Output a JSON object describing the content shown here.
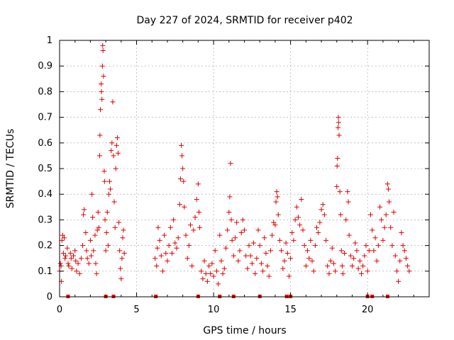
{
  "chart_data": {
    "type": "scatter",
    "title": "Day 227 of 2024, SRMTID for receiver p402",
    "xlabel": "GPS time / hours",
    "ylabel": "SRMTID / TECUs",
    "xlim": [
      0,
      24
    ],
    "ylim": [
      0,
      1
    ],
    "xticks": [
      0,
      5,
      10,
      15,
      20
    ],
    "yticks": [
      0,
      0.1,
      0.2,
      0.3,
      0.4,
      0.5,
      0.6,
      0.7,
      0.8,
      0.9,
      1
    ],
    "xtick_labels": [
      "0",
      "5",
      "10",
      "15",
      "20"
    ],
    "ytick_labels": [
      "0",
      "0.1",
      "0.2",
      "0.3",
      "0.4",
      "0.5",
      "0.6",
      "0.7",
      "0.8",
      "0.9",
      "1"
    ],
    "grid": true,
    "marker": "plus",
    "color": "#e00000",
    "series": [
      {
        "points": [
          [
            0.0,
            0.1
          ],
          [
            0.05,
            0.13
          ],
          [
            0.1,
            0.12
          ],
          [
            0.12,
            0.06
          ],
          [
            0.15,
            0.22
          ],
          [
            0.2,
            0.24
          ],
          [
            0.25,
            0.17
          ],
          [
            0.3,
            0.23
          ],
          [
            0.35,
            0.15
          ],
          [
            0.4,
            0.16
          ],
          [
            0.5,
            0.19
          ],
          [
            0.55,
            0.13
          ],
          [
            0.6,
            0.12
          ],
          [
            0.7,
            0.17
          ],
          [
            0.75,
            0.15
          ],
          [
            0.8,
            0.11
          ],
          [
            0.9,
            0.16
          ],
          [
            1.0,
            0.18
          ],
          [
            1.05,
            0.14
          ],
          [
            1.1,
            0.1
          ],
          [
            1.2,
            0.13
          ],
          [
            1.3,
            0.09
          ],
          [
            1.4,
            0.15
          ],
          [
            1.5,
            0.2
          ],
          [
            1.55,
            0.32
          ],
          [
            1.6,
            0.34
          ],
          [
            1.7,
            0.25
          ],
          [
            1.75,
            0.18
          ],
          [
            1.8,
            0.15
          ],
          [
            1.9,
            0.13
          ],
          [
            2.0,
            0.22
          ],
          [
            2.05,
            0.16
          ],
          [
            2.1,
            0.4
          ],
          [
            2.15,
            0.31
          ],
          [
            2.2,
            0.18
          ],
          [
            2.3,
            0.24
          ],
          [
            2.35,
            0.13
          ],
          [
            2.4,
            0.09
          ],
          [
            2.45,
            0.26
          ],
          [
            2.5,
            0.33
          ],
          [
            2.55,
            0.27
          ],
          [
            2.6,
            0.55
          ],
          [
            2.62,
            0.63
          ],
          [
            2.65,
            0.73
          ],
          [
            2.7,
            0.83
          ],
          [
            2.72,
            0.8
          ],
          [
            2.75,
            0.77
          ],
          [
            2.78,
            0.9
          ],
          [
            2.8,
            0.98
          ],
          [
            2.82,
            0.96
          ],
          [
            2.85,
            0.86
          ],
          [
            2.9,
            0.49
          ],
          [
            2.92,
            0.45
          ],
          [
            2.95,
            0.3
          ],
          [
            3.0,
            0.18
          ],
          [
            3.05,
            0.25
          ],
          [
            3.1,
            0.33
          ],
          [
            3.15,
            0.2
          ],
          [
            3.2,
            0.4
          ],
          [
            3.25,
            0.45
          ],
          [
            3.3,
            0.42
          ],
          [
            3.35,
            0.57
          ],
          [
            3.4,
            0.6
          ],
          [
            3.45,
            0.76
          ],
          [
            3.5,
            0.55
          ],
          [
            3.55,
            0.37
          ],
          [
            3.6,
            0.27
          ],
          [
            3.65,
            0.5
          ],
          [
            3.7,
            0.59
          ],
          [
            3.75,
            0.62
          ],
          [
            3.8,
            0.56
          ],
          [
            3.85,
            0.29
          ],
          [
            3.9,
            0.18
          ],
          [
            3.95,
            0.11
          ],
          [
            4.0,
            0.07
          ],
          [
            4.05,
            0.15
          ],
          [
            4.1,
            0.23
          ],
          [
            4.15,
            0.26
          ],
          [
            4.2,
            0.17
          ],
          [
            6.2,
            0.15
          ],
          [
            6.3,
            0.12
          ],
          [
            6.35,
            0.19
          ],
          [
            6.4,
            0.27
          ],
          [
            6.5,
            0.22
          ],
          [
            6.6,
            0.16
          ],
          [
            6.7,
            0.1
          ],
          [
            6.8,
            0.24
          ],
          [
            6.9,
            0.17
          ],
          [
            7.0,
            0.14
          ],
          [
            7.1,
            0.2
          ],
          [
            7.2,
            0.27
          ],
          [
            7.3,
            0.17
          ],
          [
            7.4,
            0.3
          ],
          [
            7.5,
            0.21
          ],
          [
            7.6,
            0.19
          ],
          [
            7.7,
            0.23
          ],
          [
            7.8,
            0.36
          ],
          [
            7.85,
            0.46
          ],
          [
            7.9,
            0.59
          ],
          [
            7.95,
            0.55
          ],
          [
            8.0,
            0.5
          ],
          [
            8.05,
            0.45
          ],
          [
            8.1,
            0.35
          ],
          [
            8.2,
            0.24
          ],
          [
            8.3,
            0.15
          ],
          [
            8.4,
            0.2
          ],
          [
            8.5,
            0.28
          ],
          [
            8.6,
            0.12
          ],
          [
            8.7,
            0.26
          ],
          [
            8.8,
            0.31
          ],
          [
            8.9,
            0.38
          ],
          [
            9.0,
            0.44
          ],
          [
            9.05,
            0.33
          ],
          [
            9.1,
            0.27
          ],
          [
            9.2,
            0.1
          ],
          [
            9.3,
            0.07
          ],
          [
            9.4,
            0.14
          ],
          [
            9.5,
            0.09
          ],
          [
            9.6,
            0.06
          ],
          [
            9.7,
            0.12
          ],
          [
            9.8,
            0.09
          ],
          [
            9.9,
            0.13
          ],
          [
            10.0,
            0.08
          ],
          [
            10.1,
            0.18
          ],
          [
            10.2,
            0.1
          ],
          [
            10.3,
            0.05
          ],
          [
            10.4,
            0.24
          ],
          [
            10.5,
            0.14
          ],
          [
            10.6,
            0.09
          ],
          [
            10.7,
            0.11
          ],
          [
            10.8,
            0.19
          ],
          [
            10.9,
            0.26
          ],
          [
            11.0,
            0.33
          ],
          [
            11.05,
            0.39
          ],
          [
            11.1,
            0.52
          ],
          [
            11.15,
            0.3
          ],
          [
            11.2,
            0.22
          ],
          [
            11.3,
            0.16
          ],
          [
            11.4,
            0.23
          ],
          [
            11.5,
            0.29
          ],
          [
            11.6,
            0.14
          ],
          [
            11.7,
            0.18
          ],
          [
            11.8,
            0.25
          ],
          [
            11.9,
            0.3
          ],
          [
            12.0,
            0.26
          ],
          [
            12.1,
            0.16
          ],
          [
            12.2,
            0.11
          ],
          [
            12.3,
            0.2
          ],
          [
            12.4,
            0.16
          ],
          [
            12.5,
            0.13
          ],
          [
            12.6,
            0.21
          ],
          [
            12.7,
            0.09
          ],
          [
            12.8,
            0.15
          ],
          [
            12.9,
            0.26
          ],
          [
            13.0,
            0.2
          ],
          [
            13.1,
            0.13
          ],
          [
            13.2,
            0.1
          ],
          [
            13.3,
            0.23
          ],
          [
            13.4,
            0.17
          ],
          [
            13.5,
            0.12
          ],
          [
            13.6,
            0.08
          ],
          [
            13.7,
            0.18
          ],
          [
            13.8,
            0.24
          ],
          [
            13.9,
            0.29
          ],
          [
            14.0,
            0.28
          ],
          [
            14.05,
            0.37
          ],
          [
            14.1,
            0.41
          ],
          [
            14.15,
            0.39
          ],
          [
            14.2,
            0.32
          ],
          [
            14.3,
            0.22
          ],
          [
            14.4,
            0.18
          ],
          [
            14.5,
            0.11
          ],
          [
            14.6,
            0.14
          ],
          [
            14.7,
            0.21
          ],
          [
            14.8,
            0.17
          ],
          [
            14.9,
            0.08
          ],
          [
            15.0,
            0.15
          ],
          [
            15.1,
            0.25
          ],
          [
            15.2,
            0.22
          ],
          [
            15.3,
            0.3
          ],
          [
            15.4,
            0.35
          ],
          [
            15.5,
            0.31
          ],
          [
            15.6,
            0.28
          ],
          [
            15.7,
            0.38
          ],
          [
            15.8,
            0.26
          ],
          [
            15.9,
            0.2
          ],
          [
            16.0,
            0.12
          ],
          [
            16.1,
            0.18
          ],
          [
            16.2,
            0.15
          ],
          [
            16.3,
            0.22
          ],
          [
            16.4,
            0.14
          ],
          [
            16.5,
            0.1
          ],
          [
            16.6,
            0.2
          ],
          [
            16.7,
            0.27
          ],
          [
            16.8,
            0.25
          ],
          [
            16.9,
            0.29
          ],
          [
            17.0,
            0.34
          ],
          [
            17.1,
            0.36
          ],
          [
            17.2,
            0.32
          ],
          [
            17.3,
            0.22
          ],
          [
            17.4,
            0.12
          ],
          [
            17.5,
            0.09
          ],
          [
            17.6,
            0.14
          ],
          [
            17.7,
            0.19
          ],
          [
            17.8,
            0.13
          ],
          [
            17.9,
            0.1
          ],
          [
            18.0,
            0.43
          ],
          [
            18.02,
            0.51
          ],
          [
            18.05,
            0.54
          ],
          [
            18.08,
            0.66
          ],
          [
            18.1,
            0.7
          ],
          [
            18.12,
            0.68
          ],
          [
            18.15,
            0.63
          ],
          [
            18.2,
            0.41
          ],
          [
            18.25,
            0.32
          ],
          [
            18.3,
            0.18
          ],
          [
            18.35,
            0.12
          ],
          [
            18.4,
            0.09
          ],
          [
            18.5,
            0.17
          ],
          [
            18.6,
            0.3
          ],
          [
            18.7,
            0.41
          ],
          [
            18.75,
            0.37
          ],
          [
            18.8,
            0.24
          ],
          [
            18.9,
            0.16
          ],
          [
            19.0,
            0.12
          ],
          [
            19.1,
            0.15
          ],
          [
            19.2,
            0.21
          ],
          [
            19.3,
            0.18
          ],
          [
            19.4,
            0.11
          ],
          [
            19.5,
            0.14
          ],
          [
            19.6,
            0.09
          ],
          [
            19.7,
            0.12
          ],
          [
            19.8,
            0.16
          ],
          [
            19.9,
            0.2
          ],
          [
            20.0,
            0.1
          ],
          [
            20.1,
            0.18
          ],
          [
            20.2,
            0.32
          ],
          [
            20.3,
            0.26
          ],
          [
            20.4,
            0.18
          ],
          [
            20.5,
            0.23
          ],
          [
            20.6,
            0.14
          ],
          [
            20.7,
            0.2
          ],
          [
            20.8,
            0.35
          ],
          [
            20.9,
            0.3
          ],
          [
            21.0,
            0.22
          ],
          [
            21.1,
            0.27
          ],
          [
            21.2,
            0.32
          ],
          [
            21.3,
            0.44
          ],
          [
            21.35,
            0.42
          ],
          [
            21.4,
            0.37
          ],
          [
            21.5,
            0.27
          ],
          [
            21.6,
            0.2
          ],
          [
            21.7,
            0.33
          ],
          [
            21.8,
            0.16
          ],
          [
            21.9,
            0.1
          ],
          [
            22.0,
            0.06
          ],
          [
            22.1,
            0.14
          ],
          [
            22.2,
            0.25
          ],
          [
            22.3,
            0.2
          ],
          [
            22.4,
            0.18
          ],
          [
            22.5,
            0.15
          ],
          [
            22.6,
            0.12
          ],
          [
            22.7,
            0.1
          ]
        ]
      }
    ],
    "baseline_markers": [
      0.55,
      3.0,
      3.5,
      6.25,
      9.0,
      10.4,
      11.3,
      13.0,
      14.75,
      15.0,
      20.0,
      20.3,
      21.3
    ]
  }
}
